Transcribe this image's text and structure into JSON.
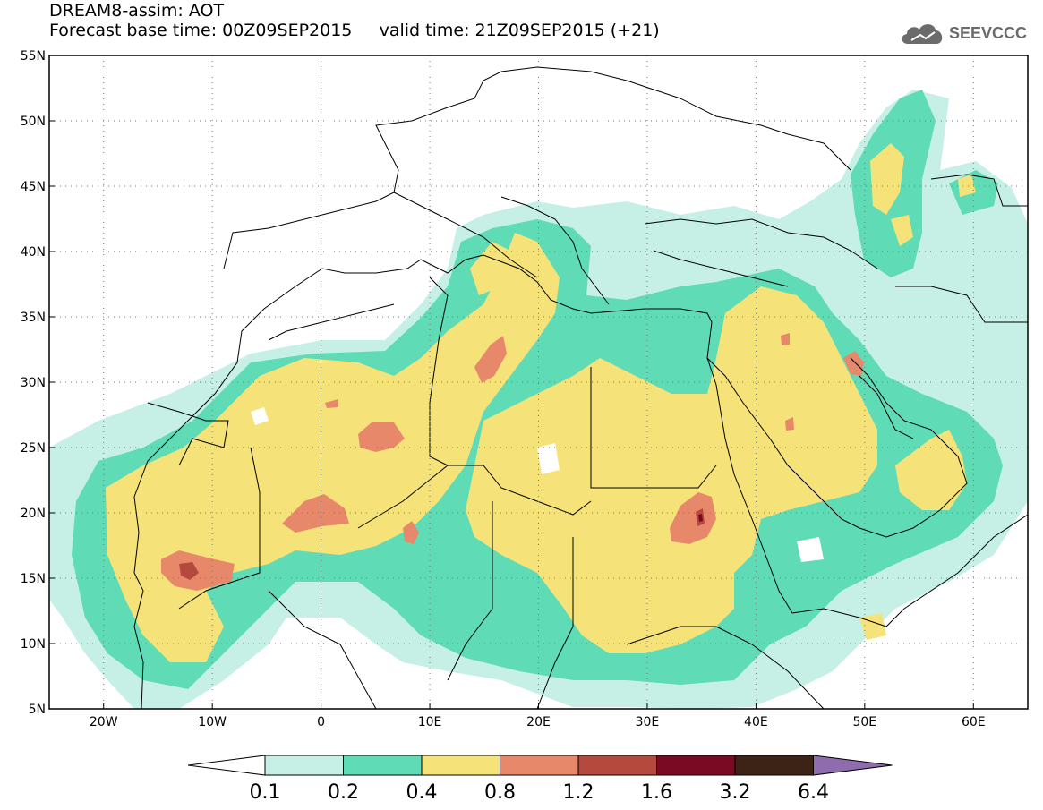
{
  "header": {
    "line1": "DREAM8-assim: AOT",
    "line2_base": "Forecast base time: 00Z09SEP2015",
    "line2_valid": "valid time: 21Z09SEP2015 (+21)",
    "brand": "SEEVCCC"
  },
  "map": {
    "lon_range": [
      -25,
      65
    ],
    "lat_range": [
      5,
      55
    ],
    "lon_ticks": [
      {
        "v": -20,
        "label": "20W"
      },
      {
        "v": -10,
        "label": "10W"
      },
      {
        "v": 0,
        "label": "0"
      },
      {
        "v": 10,
        "label": "10E"
      },
      {
        "v": 20,
        "label": "20E"
      },
      {
        "v": 30,
        "label": "30E"
      },
      {
        "v": 40,
        "label": "40E"
      },
      {
        "v": 50,
        "label": "50E"
      },
      {
        "v": 60,
        "label": "60E"
      }
    ],
    "lat_ticks": [
      {
        "v": 5,
        "label": "5N"
      },
      {
        "v": 10,
        "label": "10N"
      },
      {
        "v": 15,
        "label": "15N"
      },
      {
        "v": 20,
        "label": "20N"
      },
      {
        "v": 25,
        "label": "25N"
      },
      {
        "v": 30,
        "label": "30N"
      },
      {
        "v": 35,
        "label": "35N"
      },
      {
        "v": 40,
        "label": "40N"
      },
      {
        "v": 45,
        "label": "45N"
      },
      {
        "v": 50,
        "label": "50N"
      },
      {
        "v": 55,
        "label": "55N"
      }
    ]
  },
  "colorbar": {
    "labels": [
      "0.1",
      "0.2",
      "0.4",
      "0.8",
      "1.2",
      "1.6",
      "3.2",
      "6.4"
    ],
    "colors": [
      "#c6efe6",
      "#5fdcb5",
      "#f5e37a",
      "#e8886a",
      "#b5493e",
      "#7a0a24",
      "#3d2216",
      "#8e6cae"
    ]
  },
  "colors": {
    "aot_0_1": "#c6efe6",
    "aot_0_2": "#5fdcb5",
    "aot_0_4": "#f5e37a",
    "aot_0_8": "#e8886a",
    "aot_1_2": "#b5493e",
    "aot_1_6": "#7a0a24"
  }
}
